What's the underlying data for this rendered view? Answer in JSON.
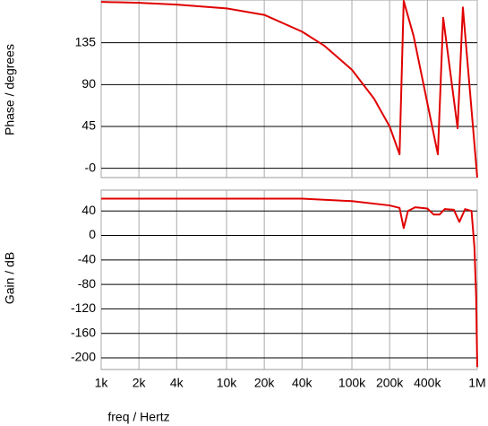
{
  "chart_data": [
    {
      "type": "line",
      "ylabel": "Phase / degrees",
      "xscale": "log",
      "grid": true,
      "xlim": [
        1000,
        1000000
      ],
      "ylim": [
        -10,
        181
      ],
      "yticks": [
        {
          "value": 0,
          "label": "-0"
        },
        45,
        90,
        135
      ],
      "x": [
        1000,
        2000,
        4000,
        10000,
        20000,
        40000,
        60000,
        100000,
        150000,
        200000,
        240000,
        259000,
        311000,
        485000,
        535000,
        697000,
        768000,
        1000000
      ],
      "series": [
        {
          "color": "#e00000",
          "values": [
            179,
            178,
            176,
            172,
            165,
            147,
            132,
            106,
            75,
            45,
            15,
            180,
            142,
            15,
            162,
            43,
            173,
            -10
          ]
        }
      ]
    },
    {
      "type": "line",
      "ylabel": "Gain / dB",
      "xlabel": "freq / Hertz",
      "xscale": "log",
      "grid": true,
      "xlim": [
        1000,
        1000000
      ],
      "ylim": [
        -219,
        74
      ],
      "yticks": [
        -200,
        -160,
        -120,
        -80,
        -40,
        0,
        40
      ],
      "xticks": [
        {
          "value": 1000,
          "label": "1k"
        },
        {
          "value": 2000,
          "label": "2k"
        },
        {
          "value": 4000,
          "label": "4k"
        },
        {
          "value": 10000,
          "label": "10k"
        },
        {
          "value": 20000,
          "label": "20k"
        },
        {
          "value": 40000,
          "label": "40k"
        },
        {
          "value": 100000,
          "label": "100k"
        },
        {
          "value": 200000,
          "label": "200k"
        },
        {
          "value": 400000,
          "label": "400k"
        },
        {
          "value": 1000000,
          "label": "1M"
        }
      ],
      "x": [
        1000,
        10000,
        40000,
        100000,
        200000,
        240000,
        259000,
        280000,
        320000,
        400000,
        450000,
        500000,
        550000,
        650000,
        720000,
        800000,
        900000,
        950000,
        980000,
        1000000
      ],
      "series": [
        {
          "color": "#e00000",
          "values": [
            60,
            60,
            60,
            56,
            49,
            45,
            12,
            40,
            46,
            44,
            34,
            34,
            43,
            42,
            22,
            43,
            40,
            -20,
            -100,
            -215
          ]
        }
      ]
    }
  ]
}
